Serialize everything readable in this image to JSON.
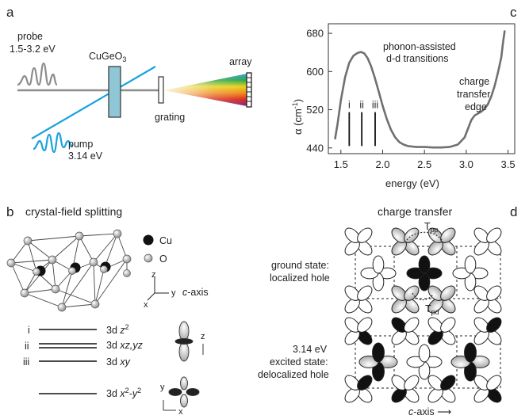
{
  "panels": {
    "a": "a",
    "b": "b",
    "c": "c",
    "d": "d"
  },
  "panel_a": {
    "probe_label": "probe",
    "probe_range": "1.5-3.2 eV",
    "sample": "CuGeO3",
    "sample_main": "CuGeO",
    "sample_sub": "3",
    "grating": "grating",
    "array": "array",
    "pump_label": "pump",
    "pump_energy": "3.14 eV"
  },
  "panel_b": {
    "title": "crystal-field splitting",
    "legend": {
      "cu": "Cu",
      "o": "O"
    },
    "axes": {
      "z": "z",
      "y": "y",
      "x": "x",
      "c_axis_c": "c",
      "c_axis_rest": "-axis"
    },
    "levels": [
      {
        "roman": "i",
        "orbital_main": "3d ",
        "orbital_italic": "z",
        "orbital_sup": "2",
        "rest": ""
      },
      {
        "roman": "ii",
        "orbital_main": "3d ",
        "orbital_italic": "xz,yz",
        "orbital_sup": "",
        "rest": ""
      },
      {
        "roman": "iii",
        "orbital_main": "3d ",
        "orbital_italic": "xy",
        "orbital_sup": "",
        "rest": ""
      },
      {
        "roman": "",
        "orbital_main": "3d ",
        "orbital_italic": "x",
        "orbital_sup": "2",
        "rest": "-y",
        "rest_sup": "2"
      }
    ],
    "orbital_axes": {
      "z": "z",
      "y": "y",
      "x": "x"
    }
  },
  "panel_c": {
    "y_label_alpha": "α (cm",
    "y_label_sup": "-1",
    "y_label_end": ")",
    "x_label": "energy (eV)",
    "annotation_phonon_1": "phonon-assisted",
    "annotation_phonon_2": "d-d transitions",
    "annotation_ct_1": "charge",
    "annotation_ct_2": "transfer",
    "annotation_ct_3": "edge",
    "markers": [
      "i",
      "ii",
      "iii"
    ]
  },
  "panel_d": {
    "title": "charge transfer",
    "ground_1": "ground state:",
    "ground_2": "localized hole",
    "excited_1": "3.14 eV",
    "excited_2": "excited state:",
    "excited_3": "delocalized hole",
    "t_pp": "T",
    "t_pp_sub": "pp",
    "t_pd": "T",
    "t_pd_sub": "pd",
    "c_axis_c": "c",
    "c_axis_rest": "-axis"
  },
  "chart_data": {
    "type": "line",
    "xlabel": "energy (eV)",
    "ylabel": "α (cm-1)",
    "xlim": [
      1.35,
      3.58
    ],
    "ylim": [
      428,
      700
    ],
    "xticks": [
      1.5,
      2.0,
      2.5,
      3.0,
      3.5
    ],
    "yticks": [
      440,
      520,
      600,
      680
    ],
    "x_tick_labels": [
      "1.5",
      "2.0",
      "2.5",
      "3.0",
      "3.5"
    ],
    "y_tick_labels": [
      "440",
      "520",
      "600",
      "680"
    ],
    "grid": false,
    "series": [
      {
        "x": [
          1.43,
          1.46,
          1.5,
          1.55,
          1.6,
          1.65,
          1.7,
          1.74,
          1.78,
          1.82,
          1.86,
          1.9,
          1.95,
          2.0,
          2.05,
          2.1,
          2.15,
          2.2,
          2.25,
          2.3,
          2.4,
          2.5,
          2.6,
          2.7,
          2.8,
          2.9,
          2.98,
          3.02,
          3.06,
          3.1,
          3.14,
          3.18,
          3.22,
          3.26,
          3.3,
          3.34,
          3.38,
          3.42,
          3.44,
          3.46
        ],
        "y": [
          458,
          490,
          540,
          588,
          618,
          633,
          639,
          641,
          638,
          628,
          612,
          590,
          560,
          528,
          500,
          478,
          462,
          452,
          447,
          444,
          442,
          442,
          441,
          441,
          442,
          447,
          462,
          480,
          498,
          508,
          512,
          516,
          522,
          532,
          548,
          570,
          598,
          630,
          660,
          686
        ]
      }
    ],
    "markers": [
      {
        "label": "i",
        "x": 1.6
      },
      {
        "label": "ii",
        "x": 1.75
      },
      {
        "label": "iii",
        "x": 1.91
      }
    ]
  }
}
